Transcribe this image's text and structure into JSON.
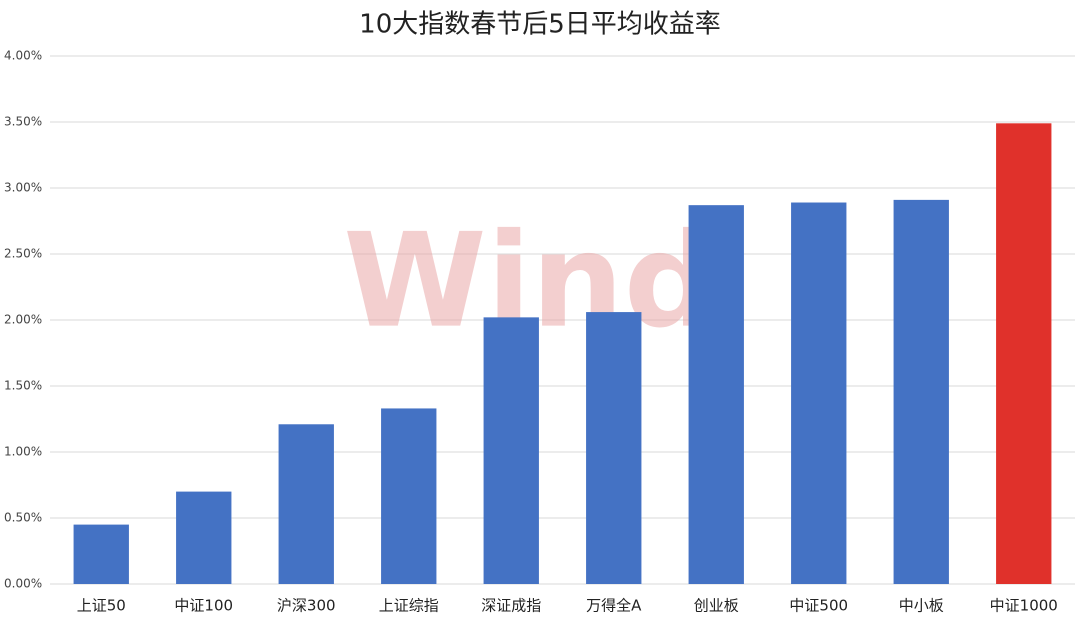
{
  "chart_data": {
    "type": "bar",
    "title": "10大指数春节后5日平均收益率",
    "watermark": "Wind",
    "categories": [
      "上证50",
      "中证100",
      "沪深300",
      "上证综指",
      "深证成指",
      "万得全A",
      "创业板",
      "中证500",
      "中小板",
      "中证1000"
    ],
    "values": [
      0.45,
      0.7,
      1.21,
      1.33,
      2.02,
      2.06,
      2.87,
      2.89,
      2.91,
      3.49
    ],
    "colors": [
      "#4472c4",
      "#4472c4",
      "#4472c4",
      "#4472c4",
      "#4472c4",
      "#4472c4",
      "#4472c4",
      "#4472c4",
      "#4472c4",
      "#e0312b"
    ],
    "ylim": [
      0,
      4
    ],
    "yticks": [
      {
        "value": 0,
        "label": "0.00%"
      },
      {
        "value": 0.5,
        "label": "0.50%"
      },
      {
        "value": 1,
        "label": "1.00%"
      },
      {
        "value": 1.5,
        "label": "1.50%"
      },
      {
        "value": 2,
        "label": "2.00%"
      },
      {
        "value": 2.5,
        "label": "2.50%"
      },
      {
        "value": 3,
        "label": "3.00%"
      },
      {
        "value": 3.5,
        "label": "3.50%"
      },
      {
        "value": 4,
        "label": "4.00%"
      }
    ],
    "grid": true
  }
}
